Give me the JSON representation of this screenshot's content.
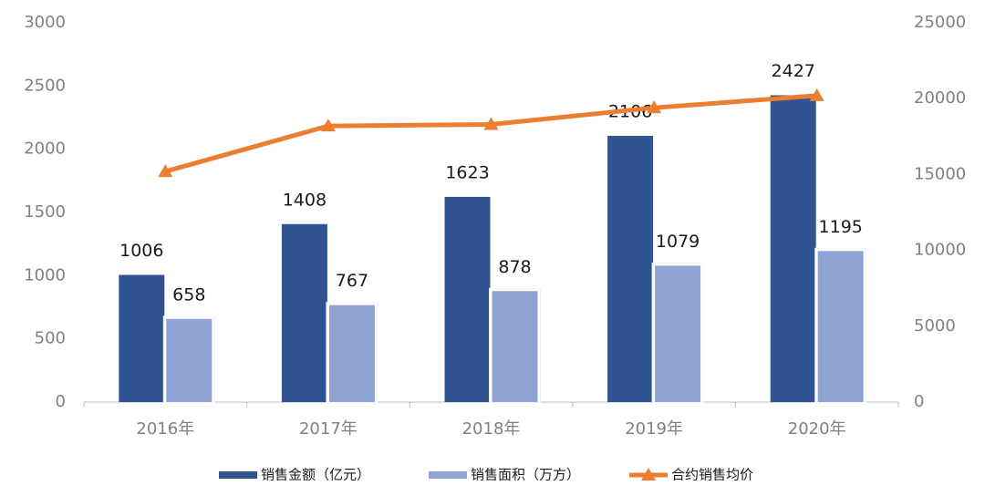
{
  "chart_data": {
    "type": "bar-line",
    "categories": [
      "2016年",
      "2017年",
      "2018年",
      "2019年",
      "2020年"
    ],
    "series": [
      {
        "name": "销售金额（亿元）",
        "color": "#2f5491",
        "type": "bar",
        "values": [
          1006,
          1408,
          1623,
          2106,
          2427
        ]
      },
      {
        "name": "销售面积（万方）",
        "color": "#8fa3d4",
        "type": "bar",
        "values": [
          658,
          767,
          878,
          1079,
          1195
        ]
      },
      {
        "name": "合约销售均价",
        "color": "#ed7d31",
        "type": "line",
        "axis": "y2",
        "values": [
          15200,
          18200,
          18300,
          19400,
          20200
        ]
      }
    ],
    "ylim": [
      0,
      3000
    ],
    "yticks": [
      0,
      500,
      1000,
      1500,
      2000,
      2500,
      3000
    ],
    "y2lim": [
      0,
      25000
    ],
    "y2ticks": [
      0,
      5000,
      10000,
      15000,
      20000,
      25000
    ],
    "grid": false,
    "legend": "bottom"
  }
}
